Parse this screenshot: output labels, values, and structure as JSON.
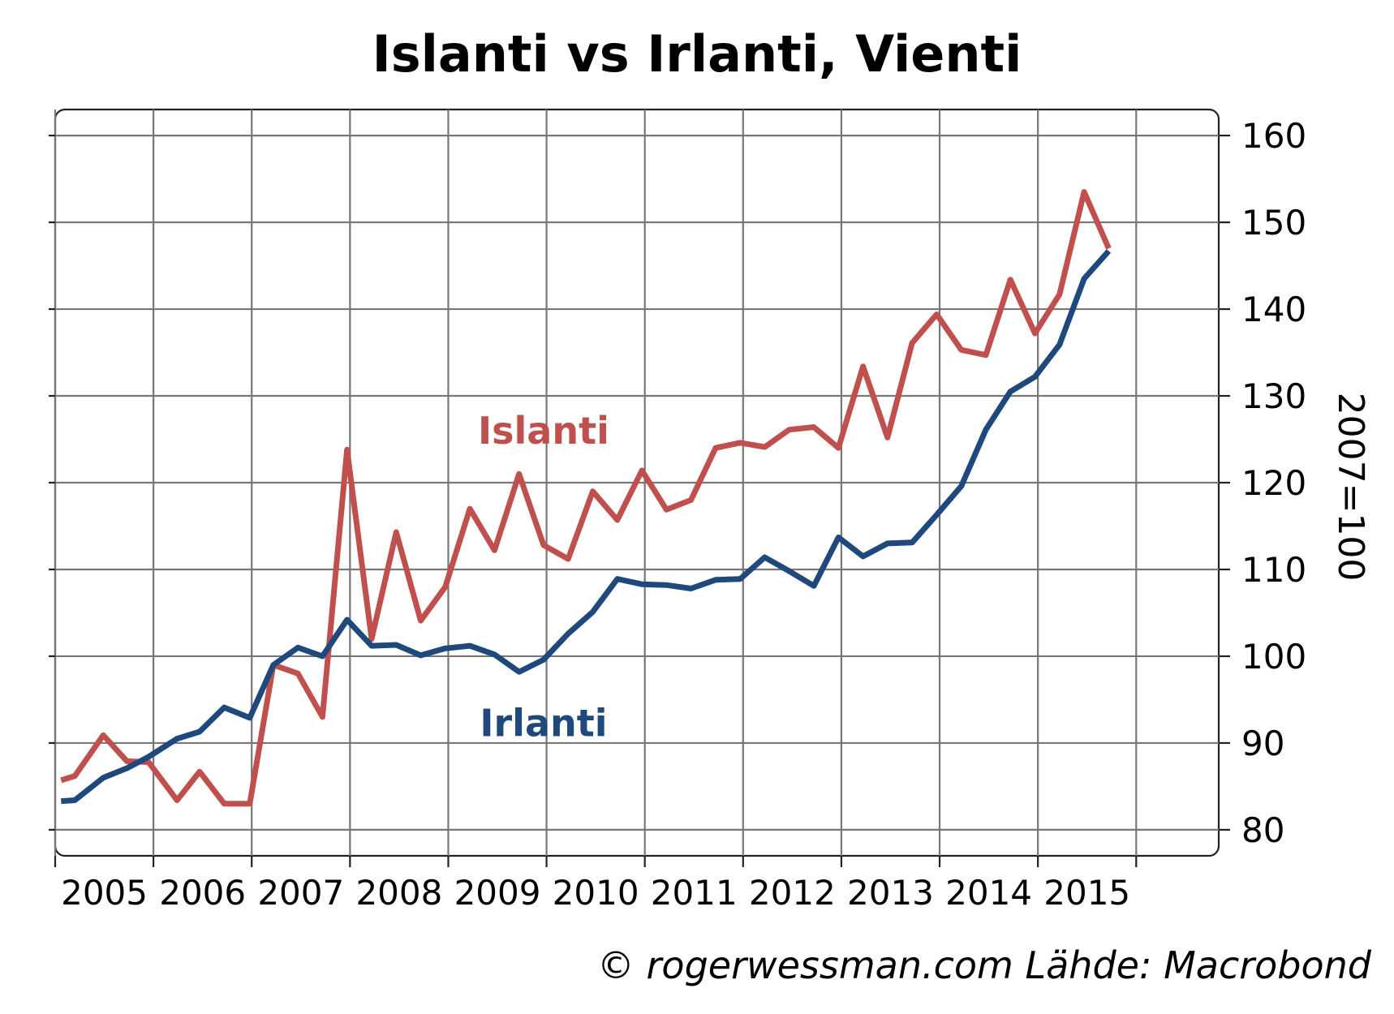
{
  "chart_data": {
    "type": "line",
    "title": "Islanti vs Irlanti, Vienti",
    "ylabel": "2007=100",
    "source": "© rogerwessman.com Lähde: Macrobond",
    "xlim": [
      2004,
      2015.84
    ],
    "ylim": [
      77,
      163
    ],
    "x_ticks": [
      "2005",
      "2006",
      "2007",
      "2008",
      "2009",
      "2010",
      "2011",
      "2012",
      "2013",
      "2014",
      "2015"
    ],
    "y_ticks": [
      80,
      90,
      100,
      110,
      120,
      130,
      140,
      150,
      160
    ],
    "grid": true,
    "y_axis_side": "right",
    "series_colors": {
      "Islanti": "#c0504d",
      "Irlanti": "#1f497d"
    },
    "x": [
      2004.06,
      2004.2,
      2004.49,
      2004.73,
      2004.95,
      2005.24,
      2005.47,
      2005.72,
      2005.98,
      2006.22,
      2006.47,
      2006.72,
      2006.97,
      2007.22,
      2007.47,
      2007.72,
      2007.97,
      2008.22,
      2008.47,
      2008.72,
      2008.97,
      2009.22,
      2009.47,
      2009.72,
      2009.97,
      2010.22,
      2010.47,
      2010.72,
      2010.97,
      2011.22,
      2011.47,
      2011.72,
      2011.97,
      2012.22,
      2012.47,
      2012.72,
      2012.97,
      2013.22,
      2013.47,
      2013.72,
      2013.97,
      2014.22,
      2014.47,
      2014.72
    ],
    "series": [
      {
        "name": "Islanti",
        "values": [
          85.7,
          86.2,
          90.9,
          87.9,
          87.8,
          83.4,
          86.7,
          83.0,
          83.0,
          99.0,
          98.0,
          93.0,
          123.8,
          102.0,
          114.3,
          104.1,
          108.0,
          117.0,
          112.2,
          121.0,
          112.8,
          111.2,
          119.0,
          115.7,
          121.4,
          116.9,
          118.0,
          124.0,
          124.6,
          124.1,
          126.1,
          126.4,
          124.0,
          133.4,
          125.2,
          136.1,
          139.4,
          135.3,
          134.7,
          143.4,
          137.2,
          141.7,
          153.5,
          147.0
        ]
      },
      {
        "name": "Irlanti",
        "values": [
          83.3,
          83.4,
          86.0,
          87.1,
          88.4,
          90.5,
          91.3,
          94.1,
          92.9,
          99.0,
          101.0,
          100.0,
          104.2,
          101.2,
          101.3,
          100.1,
          100.9,
          101.2,
          100.2,
          98.2,
          99.6,
          102.6,
          105.1,
          108.9,
          108.3,
          108.2,
          107.8,
          108.8,
          108.9,
          111.4,
          109.8,
          108.1,
          113.7,
          111.5,
          113.0,
          113.1,
          116.3,
          119.6,
          126.1,
          130.5,
          132.2,
          135.9,
          143.5,
          146.7
        ]
      }
    ],
    "annotations": [
      {
        "text": "Islanti",
        "series": "Islanti",
        "x": 2008.97,
        "y": 124.5
      },
      {
        "text": "Irlanti",
        "series": "Irlanti",
        "x": 2008.97,
        "y": 90.8
      }
    ]
  }
}
